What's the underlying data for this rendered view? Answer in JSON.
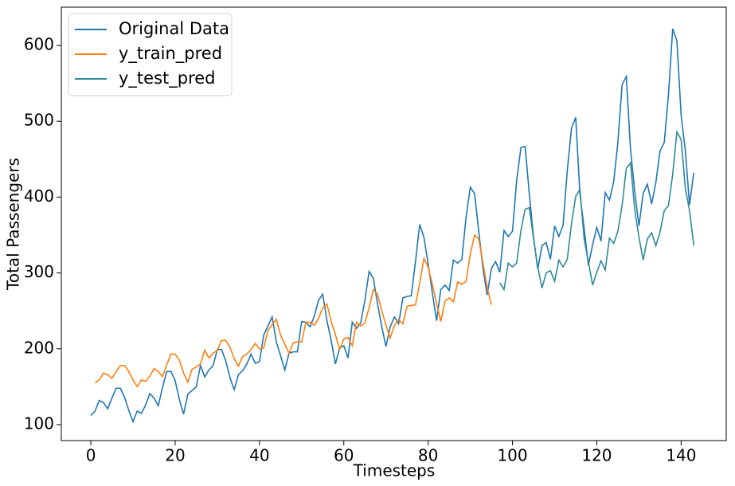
{
  "chart_data": {
    "type": "line",
    "xlabel": "Timesteps",
    "ylabel": "Total Passengers",
    "xlim": [
      -7,
      150.7
    ],
    "ylim": [
      79,
      650.4
    ],
    "xticks": [
      0,
      20,
      40,
      60,
      80,
      100,
      120,
      140
    ],
    "yticks": [
      100,
      200,
      300,
      400,
      500,
      600
    ],
    "legend": "upper left",
    "series": [
      {
        "name": "Original Data",
        "color": "#1f77b4",
        "x": [
          0,
          1,
          2,
          3,
          4,
          5,
          6,
          7,
          8,
          9,
          10,
          11,
          12,
          13,
          14,
          15,
          16,
          17,
          18,
          19,
          20,
          21,
          22,
          23,
          24,
          25,
          26,
          27,
          28,
          29,
          30,
          31,
          32,
          33,
          34,
          35,
          36,
          37,
          38,
          39,
          40,
          41,
          42,
          43,
          44,
          45,
          46,
          47,
          48,
          49,
          50,
          51,
          52,
          53,
          54,
          55,
          56,
          57,
          58,
          59,
          60,
          61,
          62,
          63,
          64,
          65,
          66,
          67,
          68,
          69,
          70,
          71,
          72,
          73,
          74,
          75,
          76,
          77,
          78,
          79,
          80,
          81,
          82,
          83,
          84,
          85,
          86,
          87,
          88,
          89,
          90,
          91,
          92,
          93,
          94,
          95,
          96,
          97,
          98,
          99,
          100,
          101,
          102,
          103,
          104,
          105,
          106,
          107,
          108,
          109,
          110,
          111,
          112,
          113,
          114,
          115,
          116,
          117,
          118,
          119,
          120,
          121,
          122,
          123,
          124,
          125,
          126,
          127,
          128,
          129,
          130,
          131,
          132,
          133,
          134,
          135,
          136,
          137,
          138,
          139,
          140,
          141,
          142,
          143
        ],
        "values": [
          112,
          118,
          132,
          129,
          121,
          135,
          148,
          148,
          136,
          119,
          104,
          118,
          115,
          126,
          141,
          135,
          125,
          149,
          170,
          170,
          158,
          133,
          114,
          140,
          145,
          150,
          178,
          163,
          172,
          178,
          199,
          199,
          184,
          162,
          146,
          166,
          171,
          180,
          193,
          181,
          183,
          218,
          230,
          242,
          209,
          191,
          172,
          194,
          196,
          196,
          236,
          235,
          229,
          243,
          264,
          272,
          237,
          211,
          180,
          201,
          204,
          188,
          235,
          227,
          234,
          264,
          302,
          293,
          259,
          229,
          203,
          229,
          242,
          233,
          267,
          269,
          270,
          315,
          364,
          347,
          312,
          274,
          237,
          278,
          284,
          277,
          317,
          313,
          318,
          374,
          413,
          405,
          355,
          306,
          271,
          306,
          315,
          301,
          356,
          348,
          355,
          422,
          465,
          467,
          404,
          347,
          305,
          336,
          340,
          318,
          362,
          348,
          363,
          435,
          491,
          505,
          404,
          359,
          310,
          337,
          360,
          342,
          406,
          396,
          420,
          472,
          548,
          559,
          463,
          407,
          362,
          405,
          417,
          391,
          419,
          461,
          472,
          535,
          622,
          606,
          508,
          461,
          390,
          432
        ]
      },
      {
        "name": "y_train_pred",
        "color": "#ff7f0e",
        "x": [
          1,
          2,
          3,
          4,
          5,
          6,
          7,
          8,
          9,
          10,
          11,
          12,
          13,
          14,
          15,
          16,
          17,
          18,
          19,
          20,
          21,
          22,
          23,
          24,
          25,
          26,
          27,
          28,
          29,
          30,
          31,
          32,
          33,
          34,
          35,
          36,
          37,
          38,
          39,
          40,
          41,
          42,
          43,
          44,
          45,
          46,
          47,
          48,
          49,
          50,
          51,
          52,
          53,
          54,
          55,
          56,
          57,
          58,
          59,
          60,
          61,
          62,
          63,
          64,
          65,
          66,
          67,
          68,
          69,
          70,
          71,
          72,
          73,
          74,
          75,
          76,
          77,
          78,
          79,
          80,
          81,
          82,
          83,
          84,
          85,
          86,
          87,
          88,
          89,
          90,
          91,
          92,
          93,
          94,
          95
        ],
        "values": [
          155,
          159,
          168,
          166,
          161,
          170,
          178,
          178,
          170,
          159,
          150,
          159,
          157,
          164,
          174,
          170,
          163,
          179,
          193,
          193,
          185,
          168,
          156,
          173,
          176,
          180,
          198,
          188,
          194,
          198,
          211,
          211,
          202,
          187,
          177,
          190,
          193,
          199,
          207,
          200,
          201,
          224,
          232,
          239,
          218,
          206,
          194,
          208,
          209,
          209,
          235,
          235,
          231,
          240,
          254,
          259,
          236,
          219,
          199,
          213,
          215,
          204,
          235,
          230,
          234,
          254,
          278,
          272,
          250,
          231,
          214,
          231,
          239,
          233,
          256,
          257,
          258,
          287,
          319,
          308,
          285,
          260,
          236,
          263,
          267,
          262,
          288,
          285,
          289,
          325,
          350,
          345,
          313,
          281,
          258
        ]
      },
      {
        "name": "y_test_pred",
        "color": "#2f8a96",
        "x": [
          97,
          98,
          99,
          100,
          101,
          102,
          103,
          104,
          105,
          106,
          107,
          108,
          109,
          110,
          111,
          112,
          113,
          114,
          115,
          116,
          117,
          118,
          119,
          120,
          121,
          122,
          123,
          124,
          125,
          126,
          127,
          128,
          129,
          130,
          131,
          132,
          133,
          134,
          135,
          136,
          137,
          138,
          139,
          140,
          141,
          142,
          143
        ],
        "values": [
          287,
          278,
          313,
          308,
          313,
          356,
          384,
          386,
          345,
          308,
          280,
          300,
          303,
          289,
          317,
          308,
          318,
          365,
          401,
          410,
          345,
          315,
          284,
          301,
          316,
          304,
          346,
          339,
          355,
          389,
          438,
          445,
          383,
          347,
          317,
          345,
          353,
          336,
          354,
          382,
          389,
          430,
          486,
          476,
          412,
          382,
          336
        ]
      }
    ]
  }
}
